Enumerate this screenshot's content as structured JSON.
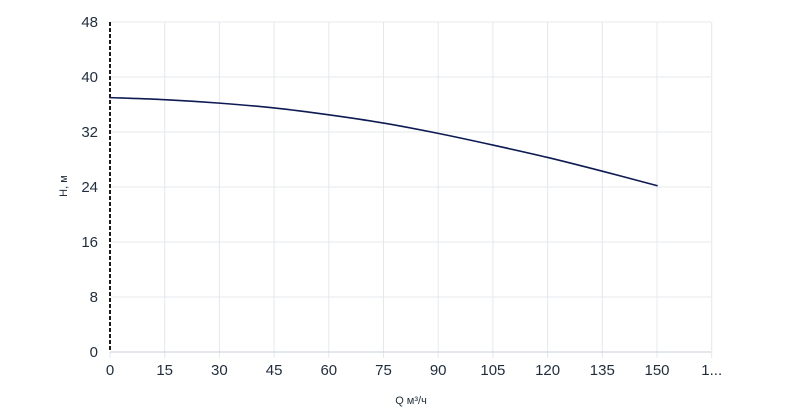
{
  "chart_data": {
    "type": "line",
    "title": "",
    "xlabel": "Q м³/ч",
    "ylabel": "H, м",
    "xlim": [
      0,
      165
    ],
    "ylim": [
      0,
      48
    ],
    "x_ticks": [
      "0",
      "15",
      "30",
      "45",
      "60",
      "75",
      "90",
      "105",
      "120",
      "135",
      "150",
      "1..."
    ],
    "y_ticks": [
      "0",
      "8",
      "16",
      "24",
      "32",
      "40",
      "48"
    ],
    "grid": true,
    "legend": "none",
    "series": [
      {
        "color": "#0d1b52",
        "x": [
          0,
          15,
          30,
          45,
          60,
          75,
          90,
          105,
          120,
          135,
          150
        ],
        "y": [
          37.0,
          36.7,
          36.2,
          35.5,
          34.5,
          33.3,
          31.8,
          30.1,
          28.3,
          26.3,
          24.2
        ]
      }
    ]
  },
  "colors": {
    "grid": "#e4e8ee",
    "axis": "#1a1a1a",
    "text": "#1f2d3d",
    "line": "#0d1b52"
  }
}
